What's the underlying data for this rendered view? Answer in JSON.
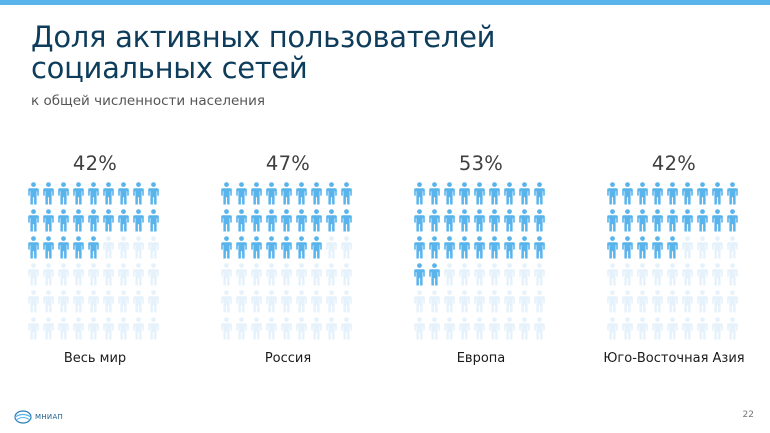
{
  "header": {
    "title": "Доля активных пользователей социальных сетей",
    "subtitle": "к общей численности населения"
  },
  "chart_data": {
    "type": "pictogram",
    "title": "Доля активных пользователей социальных сетей",
    "subtitle": "к общей численности населения",
    "icons_per_group": 54,
    "categories": [
      "Весь мир",
      "Россия",
      "Европа",
      "Юго-Восточная Азия"
    ],
    "value_labels": [
      "42%",
      "47%",
      "53%",
      "42%"
    ],
    "values": [
      42,
      47,
      53,
      42
    ]
  },
  "colors": {
    "filled": "#5ab4ec",
    "empty": "#e6f2fb",
    "title": "#0e3d5c",
    "accent_bar": "#5ab4ec"
  },
  "footer": {
    "logo_text": "МНИАП",
    "page_number": "22"
  }
}
